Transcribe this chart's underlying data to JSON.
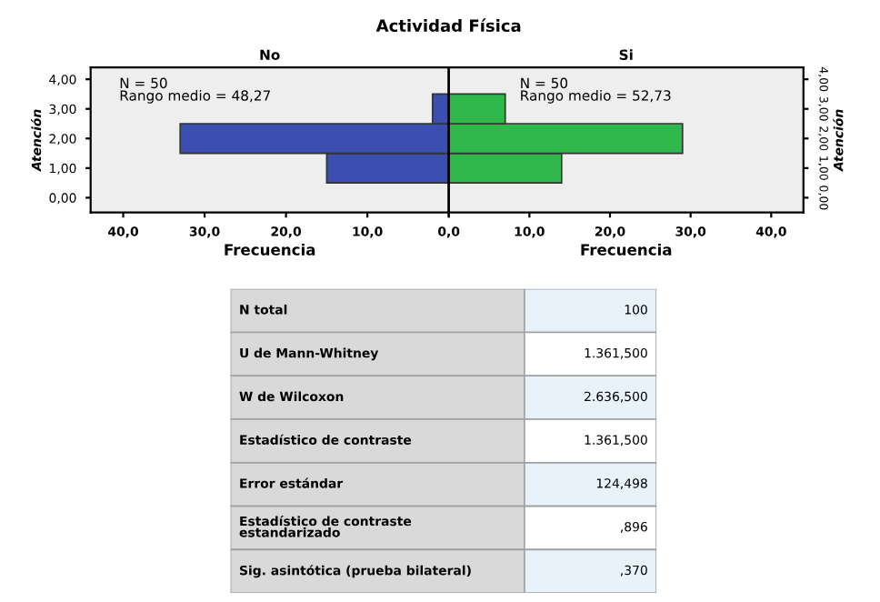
{
  "chart_data": [
    {
      "type": "histogram",
      "title": "Actividad Física",
      "subtitle": "No",
      "orientation": "horizontal",
      "bins": [
        0.5,
        1.5,
        2.5,
        3.5
      ],
      "values": [
        15,
        33,
        2
      ],
      "color": "#3a4fb0",
      "xlabel": "Frecuencia",
      "ylabel": "Atención",
      "xlim": [
        44,
        0
      ],
      "xticks": [
        {
          "value": 40,
          "label": "40,0"
        },
        {
          "value": 30,
          "label": "30,0"
        },
        {
          "value": 20,
          "label": "20,0"
        },
        {
          "value": 10,
          "label": "10,0"
        },
        {
          "value": 0,
          "label": "0,0"
        }
      ],
      "ylim": [
        -0.5,
        4.4
      ],
      "yticks": [
        {
          "value": 0,
          "label": "0,00"
        },
        {
          "value": 1,
          "label": "1,00"
        },
        {
          "value": 2,
          "label": "2,00"
        },
        {
          "value": 3,
          "label": "3,00"
        },
        {
          "value": 4,
          "label": "4,00"
        }
      ],
      "annotations": [
        "N = 50\nRango medio = 48,27"
      ],
      "grid": false
    },
    {
      "type": "histogram",
      "subtitle": "Si",
      "orientation": "horizontal",
      "bins": [
        0.5,
        1.5,
        2.5,
        3.5
      ],
      "values": [
        14,
        29,
        7
      ],
      "color": "#2fb84c",
      "xlabel": "Frecuencia",
      "ylabel": "Atención",
      "xlim": [
        0,
        44
      ],
      "xticks": [
        {
          "value": 0,
          "label": null
        },
        {
          "value": 10,
          "label": "10,0"
        },
        {
          "value": 20,
          "label": "20,0"
        },
        {
          "value": 30,
          "label": "30,0"
        },
        {
          "value": 40,
          "label": "40,0"
        }
      ],
      "ylim": [
        -0.5,
        4.4
      ],
      "yticks": [
        {
          "value": 0,
          "label": "0,00"
        },
        {
          "value": 1,
          "label": "1,00"
        },
        {
          "value": 2,
          "label": "2,00"
        },
        {
          "value": 3,
          "label": "3,00"
        },
        {
          "value": 4,
          "label": "4,00"
        }
      ],
      "annotations": [
        "N = 50\nRango medio = 52,73"
      ],
      "grid": false
    },
    {
      "type": "other",
      "categories": [
        "N total",
        "U de Mann-Whitney",
        "W de Wilcoxon",
        "Estadístico de contraste",
        "Error estándar",
        "Estadístico de contraste\nestandarizado",
        "Sig. asintótica (prueba bilateral)"
      ],
      "value_labels": [
        "100",
        "1.361,500",
        "2.636,500",
        "1.361,500",
        "124,498",
        ",896",
        ",370"
      ]
    }
  ]
}
